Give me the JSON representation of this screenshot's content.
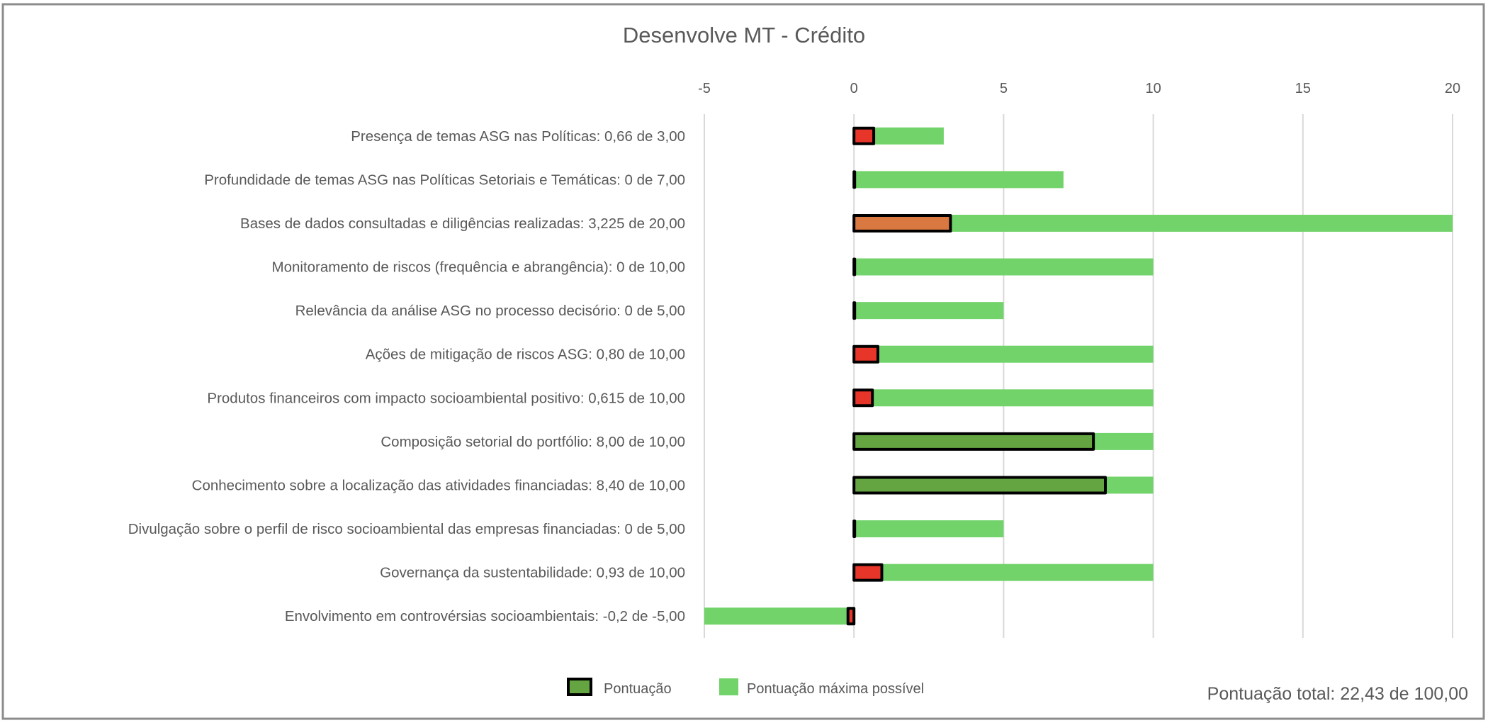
{
  "chart_data": {
    "type": "bar",
    "orientation": "horizontal",
    "title": "Desenvolve MT - Crédito",
    "xlim": [
      -5,
      20
    ],
    "x_ticks": [
      "-5",
      "0",
      "5",
      "10",
      "15",
      "20"
    ],
    "x_tick_values": [
      -5,
      0,
      5,
      10,
      15,
      20
    ],
    "grid": true,
    "legend_position": "bottom",
    "series": [
      {
        "name": "Pontuação",
        "color": "#64A542"
      },
      {
        "name": "Pontuação máxima possível",
        "color": "#72D36A"
      }
    ],
    "categories": [
      {
        "label": "Presença de temas ASG nas Políticas: 0,66 de 3,00",
        "score": 0.66,
        "max": 3,
        "score_color": "#E8352A"
      },
      {
        "label": "Profundidade de temas ASG nas Políticas Setoriais e Temáticas: 0 de 7,00",
        "score": 0,
        "max": 7,
        "score_color": "#E8352A"
      },
      {
        "label": "Bases de dados consultadas e diligências realizadas: 3,225 de 20,00",
        "score": 3.225,
        "max": 20,
        "score_color": "#D97840"
      },
      {
        "label": "Monitoramento de riscos (frequência e abrangência): 0 de 10,00",
        "score": 0,
        "max": 10,
        "score_color": "#E8352A"
      },
      {
        "label": "Relevância da análise ASG no processo decisório: 0 de 5,00",
        "score": 0,
        "max": 5,
        "score_color": "#E8352A"
      },
      {
        "label": "Ações de mitigação de riscos ASG: 0,80 de 10,00",
        "score": 0.8,
        "max": 10,
        "score_color": "#E8352A"
      },
      {
        "label": "Produtos financeiros com impacto socioambiental positivo: 0,615 de 10,00",
        "score": 0.615,
        "max": 10,
        "score_color": "#E8352A"
      },
      {
        "label": "Composição setorial do portfólio: 8,00 de 10,00",
        "score": 8.0,
        "max": 10,
        "score_color": "#64A542"
      },
      {
        "label": "Conhecimento sobre a localização das atividades financiadas: 8,40 de 10,00",
        "score": 8.4,
        "max": 10,
        "score_color": "#64A542"
      },
      {
        "label": "Divulgação sobre o perfil de risco socioambiental das empresas financiadas: 0 de 5,00",
        "score": 0,
        "max": 5,
        "score_color": "#E8352A"
      },
      {
        "label": "Governança da sustentabilidade: 0,93 de 10,00",
        "score": 0.93,
        "max": 10,
        "score_color": "#E8352A"
      },
      {
        "label": "Envolvimento em controvérsias socioambientais: -0,2 de -5,00",
        "score": -0.2,
        "max": -5,
        "score_color": "#E8352A"
      }
    ],
    "annotation": "Pontuação total: 22,43 de 100,00"
  }
}
